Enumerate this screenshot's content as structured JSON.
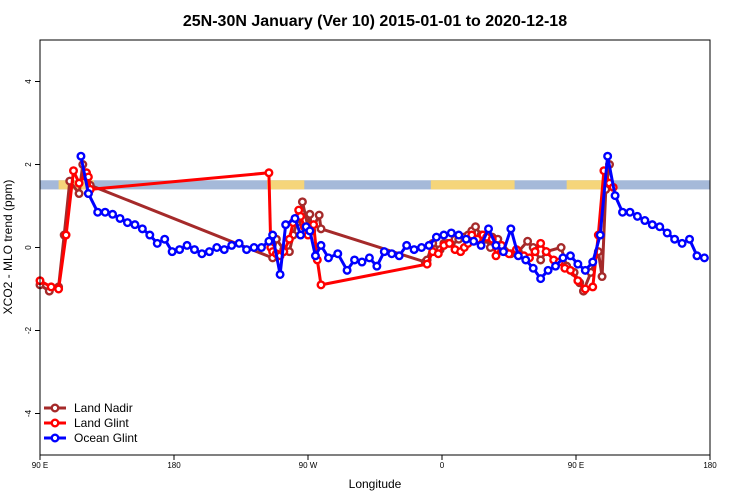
{
  "chart_data": {
    "type": "line",
    "title": "25N-30N January (Ver 10)   2015-01-01 to 2020-12-18",
    "xlabel": "Longitude",
    "ylabel": "XCO2 - MLO trend (ppm)",
    "xlim": [
      90,
      450
    ],
    "ylim": [
      -5,
      5
    ],
    "x_ticks": [
      {
        "value": 90,
        "label": "90 E"
      },
      {
        "value": 162,
        "label": "180"
      },
      {
        "value": 234,
        "label": "90 W"
      },
      {
        "value": 306,
        "label": "0"
      },
      {
        "value": 378,
        "label": "90 E"
      },
      {
        "value": 450,
        "label": "180"
      }
    ],
    "y_ticks": [
      -4,
      -2,
      0,
      2,
      4
    ],
    "legend_position": "bottom-left",
    "land_ocean_band": {
      "y_range": [
        1.4,
        1.62
      ],
      "ocean_color": "#a5b9d9",
      "land_color": "#f5d57a",
      "land_x_ranges": [
        [
          100,
          119
        ],
        [
          212,
          232
        ],
        [
          300,
          345
        ],
        [
          373,
          392
        ]
      ]
    },
    "series": [
      {
        "name": "Land Nadir",
        "color": "#a52a2a",
        "x": [
          90,
          95,
          100,
          103,
          106,
          111,
          113,
          115,
          116,
          117,
          215,
          217,
          221,
          224,
          226,
          228,
          229,
          231,
          234,
          235,
          236,
          240,
          241,
          297,
          298,
          301,
          305,
          307,
          309,
          311,
          313,
          315,
          318,
          320,
          322,
          324,
          327,
          329,
          330,
          332,
          333,
          336,
          338,
          339,
          340,
          343,
          347,
          352,
          355,
          356,
          359,
          362,
          370,
          373,
          377,
          380,
          382,
          386,
          390,
          392,
          394,
          396
        ],
        "y": [
          -0.9,
          -1.05,
          -0.95,
          0.3,
          1.6,
          1.3,
          2.0,
          1.7,
          1.3,
          1.5,
          -0.25,
          0.2,
          -0.05,
          -0.1,
          0.3,
          0.6,
          0.7,
          1.1,
          0.5,
          0.8,
          0.4,
          0.78,
          0.45,
          -0.35,
          -0.3,
          0.1,
          -0.05,
          0.1,
          0.1,
          0.1,
          0.2,
          0.2,
          0.25,
          0.3,
          0.4,
          0.5,
          0.3,
          0.2,
          0.2,
          0.0,
          0.25,
          0.2,
          0.0,
          -0.05,
          -0.1,
          -0.15,
          -0.1,
          0.15,
          0.0,
          -0.1,
          -0.3,
          -0.1,
          0.0,
          -0.45,
          -0.6,
          -0.85,
          -1.05,
          -0.6,
          -0.1,
          -0.7,
          1.4,
          2.0
        ],
        "y_note_removed": true
      },
      {
        "name": "Land Glint",
        "color": "#ff0000",
        "x": [
          90,
          96,
          100,
          104,
          108,
          111,
          115,
          116,
          117,
          213,
          214,
          215,
          217,
          219,
          221,
          224,
          226,
          229,
          230,
          232,
          234,
          235,
          237,
          239,
          241,
          298,
          301,
          304,
          307,
          310,
          313,
          316,
          318,
          320,
          322,
          325,
          328,
          330,
          333,
          335,
          338,
          342,
          346,
          350,
          353,
          356,
          359,
          362,
          366,
          369,
          372,
          375,
          379,
          383,
          387,
          390,
          393,
          396,
          398
        ],
        "y": [
          -0.8,
          -0.95,
          -1.0,
          0.3,
          1.85,
          1.55,
          1.8,
          1.7,
          1.4,
          1.8,
          0.0,
          -0.1,
          -0.15,
          -0.2,
          -0.1,
          0.2,
          0.6,
          0.9,
          0.75,
          0.5,
          0.3,
          0.5,
          0.55,
          -0.3,
          -0.9,
          -0.4,
          -0.1,
          -0.15,
          0.05,
          0.1,
          -0.05,
          -0.1,
          0.0,
          0.1,
          0.3,
          0.2,
          0.3,
          0.25,
          0.2,
          -0.2,
          0.05,
          -0.15,
          -0.05,
          -0.2,
          -0.25,
          -0.1,
          0.1,
          -0.1,
          -0.3,
          -0.35,
          -0.5,
          -0.55,
          -0.8,
          -1.0,
          -0.95,
          0.3,
          1.85,
          1.55,
          1.45
        ]
      },
      {
        "name": "Ocean Glint",
        "color": "#0000ff",
        "x": [
          112,
          116,
          121,
          125,
          129,
          133,
          137,
          141,
          145,
          149,
          153,
          157,
          161,
          165,
          169,
          173,
          177,
          181,
          185,
          189,
          193,
          197,
          201,
          205,
          209,
          213,
          215,
          219,
          222,
          227,
          230,
          233,
          235,
          238,
          241,
          245,
          250,
          255,
          259,
          263,
          267,
          271,
          275,
          279,
          283,
          287,
          291,
          295,
          299,
          303,
          307,
          311,
          315,
          319,
          323,
          327,
          331,
          335,
          339,
          343,
          347,
          351,
          355,
          359,
          363,
          367,
          371,
          375,
          379,
          383,
          387,
          391,
          395,
          399,
          403,
          407,
          411,
          415,
          419,
          423,
          427,
          431,
          435,
          439,
          443,
          447
        ],
        "y": [
          2.2,
          1.3,
          0.85,
          0.85,
          0.8,
          0.7,
          0.6,
          0.55,
          0.45,
          0.3,
          0.1,
          0.2,
          -0.1,
          -0.05,
          0.05,
          -0.05,
          -0.15,
          -0.1,
          0.0,
          -0.05,
          0.05,
          0.1,
          -0.05,
          0.0,
          0.0,
          0.15,
          0.3,
          -0.65,
          0.55,
          0.7,
          0.3,
          0.5,
          0.4,
          -0.2,
          0.05,
          -0.25,
          -0.15,
          -0.55,
          -0.3,
          -0.35,
          -0.25,
          -0.45,
          -0.1,
          -0.15,
          -0.2,
          0.05,
          -0.05,
          0.0,
          0.05,
          0.25,
          0.3,
          0.35,
          0.3,
          0.2,
          0.15,
          0.05,
          0.45,
          0.05,
          -0.1,
          0.45,
          -0.2,
          -0.3,
          -0.5,
          -0.75,
          -0.55,
          -0.45,
          -0.25,
          -0.2,
          -0.4,
          -0.55,
          -0.35,
          0.3,
          2.2,
          1.25,
          0.85,
          0.85,
          0.75,
          0.65,
          0.55,
          0.5,
          0.35,
          0.2,
          0.1,
          0.2,
          -0.2,
          -0.25
        ]
      }
    ]
  }
}
